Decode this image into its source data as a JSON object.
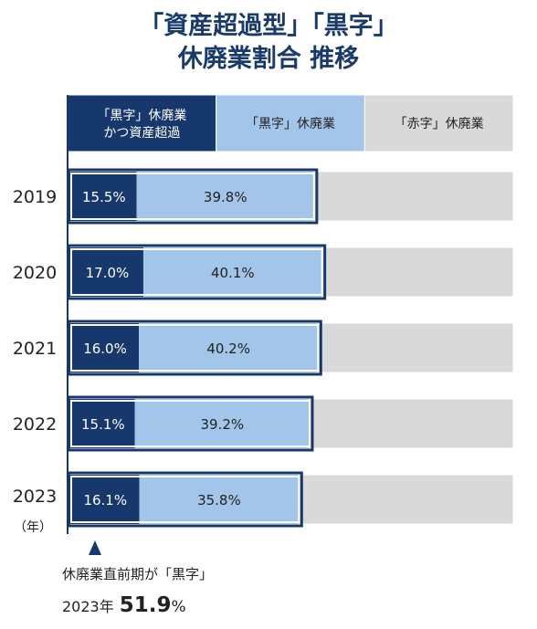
{
  "title_line1": "「資産超過型」「黒字」",
  "title_line2": "休廃業割合 推移",
  "chart_data": {
    "type": "bar",
    "orientation": "horizontal",
    "stacked": true,
    "legend": [
      "「黒字」休廃業\nかつ資産超過",
      "「黒字」休廃業",
      "「赤字」休廃業"
    ],
    "categories": [
      "2019",
      "2020",
      "2021",
      "2022",
      "2023"
    ],
    "year_unit": "（年）",
    "series": [
      {
        "name": "「黒字」休廃業かつ資産超過",
        "values": [
          15.5,
          17.0,
          16.0,
          15.1,
          16.1
        ],
        "labels": [
          "15.5%",
          "17.0%",
          "16.0%",
          "15.1%",
          "16.1%"
        ]
      },
      {
        "name": "「黒字」休廃業",
        "values": [
          39.8,
          40.1,
          40.2,
          39.2,
          35.8
        ],
        "labels": [
          "39.8%",
          "40.1%",
          "40.2%",
          "39.2%",
          "35.8%"
        ]
      },
      {
        "name": "「赤字」休廃業",
        "values": [
          44.7,
          42.9,
          43.8,
          45.7,
          48.1
        ]
      }
    ],
    "xlim": [
      0,
      100
    ],
    "colors": {
      "dark": "#17386c",
      "light": "#a3c5e9",
      "gray": "#d9d9d9",
      "outline": "#17386c"
    }
  },
  "note": {
    "arrow_icon": "triangle-up-icon",
    "label": "休廃業直前期が「黒字」",
    "year": "2023年",
    "value": "51.9",
    "unit": "%"
  }
}
